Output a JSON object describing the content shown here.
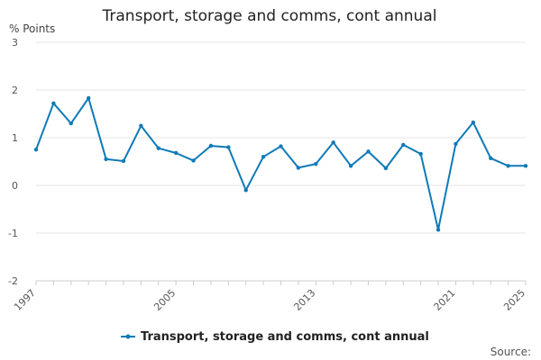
{
  "chart_data": {
    "type": "line",
    "title": "Transport, storage and comms, cont annual",
    "ylabel": "% Points",
    "xlabel": "",
    "x": [
      1997,
      1998,
      1999,
      2000,
      2001,
      2002,
      2003,
      2004,
      2005,
      2006,
      2007,
      2008,
      2009,
      2010,
      2011,
      2012,
      2013,
      2014,
      2015,
      2016,
      2017,
      2018,
      2019,
      2020,
      2021,
      2022,
      2023,
      2024,
      2025
    ],
    "series": [
      {
        "name": "Transport, storage and comms, cont annual",
        "color": "#0f7ab8",
        "values": [
          0.75,
          1.72,
          1.3,
          1.83,
          0.55,
          0.51,
          1.25,
          0.78,
          0.68,
          0.52,
          0.83,
          0.8,
          -0.1,
          0.6,
          0.82,
          0.37,
          0.45,
          0.9,
          0.41,
          0.71,
          0.36,
          0.85,
          0.66,
          -0.93,
          0.87,
          1.32,
          0.57,
          0.41,
          0.41
        ]
      }
    ],
    "ylim": [
      -2,
      3
    ],
    "yticks": [
      -2,
      -1,
      0,
      1,
      2,
      3
    ],
    "xticks": [
      1997,
      2005,
      2013,
      2021,
      2025
    ],
    "grid": true,
    "legend_position": "bottom",
    "source": "Source:"
  }
}
